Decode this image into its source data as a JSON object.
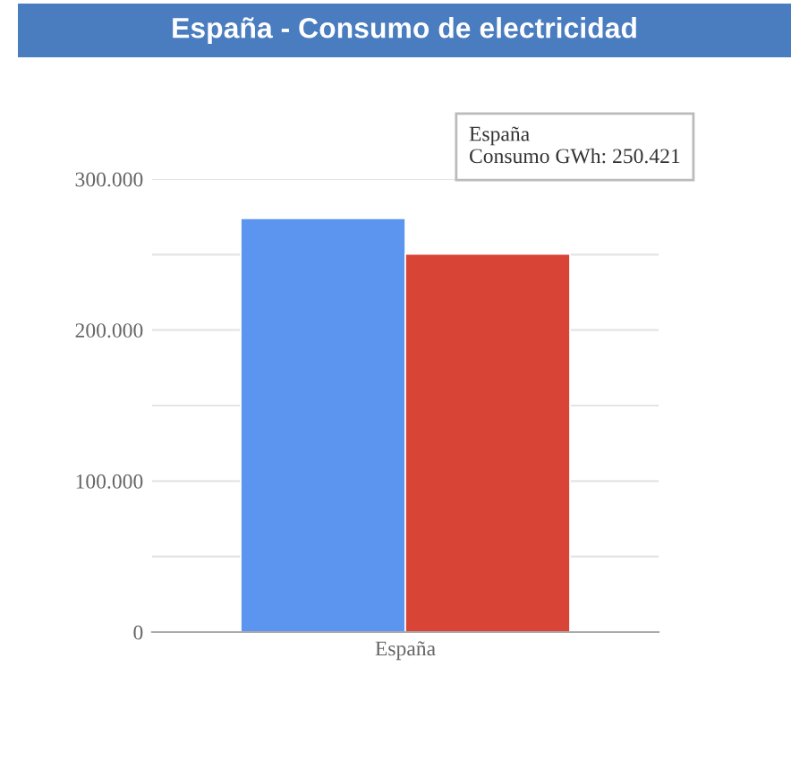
{
  "chart_data": {
    "type": "bar",
    "title": "España - Consumo de electricidad",
    "categories": [
      "España"
    ],
    "series": [
      {
        "color": "#5b95f0",
        "values": [
          274000
        ]
      },
      {
        "color": "#d84436",
        "values": [
          250421
        ]
      }
    ],
    "ylim": [
      0,
      300000
    ],
    "yticks": [
      {
        "value": 0,
        "label": "0"
      },
      {
        "value": 50000,
        "label": null
      },
      {
        "value": 100000,
        "label": "100.000"
      },
      {
        "value": 150000,
        "label": null
      },
      {
        "value": 200000,
        "label": "200.000"
      },
      {
        "value": 250000,
        "label": null
      },
      {
        "value": 300000,
        "label": "300.000"
      }
    ],
    "grid": "y",
    "annotations": [
      "España\nConsumo GWh: 250.421"
    ]
  }
}
